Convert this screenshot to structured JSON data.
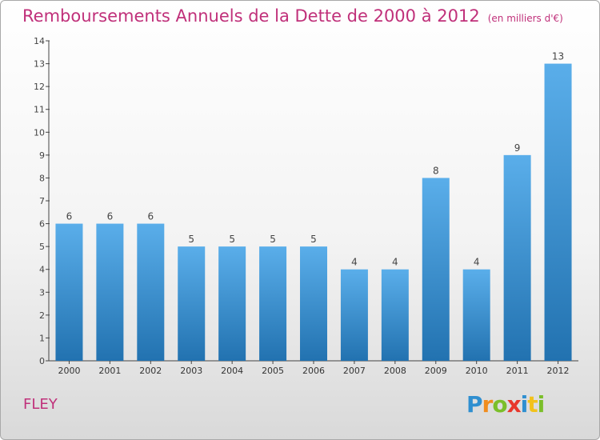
{
  "header": {
    "title": "Remboursements Annuels de la Dette de 2000 à 2012",
    "subtitle": "(en milliers d'€)"
  },
  "footer": {
    "town": "FLEY",
    "logo_letters": [
      {
        "ch": "P",
        "color": "#2f8fd0"
      },
      {
        "ch": "r",
        "color": "#f08c1e"
      },
      {
        "ch": "o",
        "color": "#7bbf2a"
      },
      {
        "ch": "x",
        "color": "#e8372c"
      },
      {
        "ch": "i",
        "color": "#2f8fd0"
      },
      {
        "ch": "t",
        "color": "#f2c21b"
      },
      {
        "ch": "i",
        "color": "#7bbf2a"
      }
    ]
  },
  "colors": {
    "bar_top": "#5aaeea",
    "bar_bottom": "#2272b0",
    "accent": "#c0307a"
  },
  "chart_data": {
    "type": "bar",
    "title": "Remboursements Annuels de la Dette de 2000 à 2012",
    "subtitle": "(en milliers d'€)",
    "xlabel": "",
    "ylabel": "",
    "categories": [
      "2000",
      "2001",
      "2002",
      "2003",
      "2004",
      "2005",
      "2006",
      "2007",
      "2008",
      "2009",
      "2010",
      "2011",
      "2012"
    ],
    "values": [
      6,
      6,
      6,
      5,
      5,
      5,
      5,
      4,
      4,
      8,
      4,
      9,
      13
    ],
    "data_labels": [
      "6",
      "6",
      "6",
      "5",
      "5",
      "5",
      "5",
      "4",
      "4",
      "8",
      "4",
      "9",
      "13"
    ],
    "ylim": [
      0,
      14
    ],
    "yticks": [
      0,
      1,
      2,
      3,
      4,
      5,
      6,
      7,
      8,
      9,
      10,
      11,
      12,
      13,
      14
    ],
    "ytick_labels": [
      "0",
      "1",
      "2",
      "3",
      "4",
      "5",
      "6",
      "7",
      "8",
      "9",
      "10",
      "11",
      "12",
      "13",
      "14"
    ],
    "grid": false,
    "legend": "none"
  }
}
